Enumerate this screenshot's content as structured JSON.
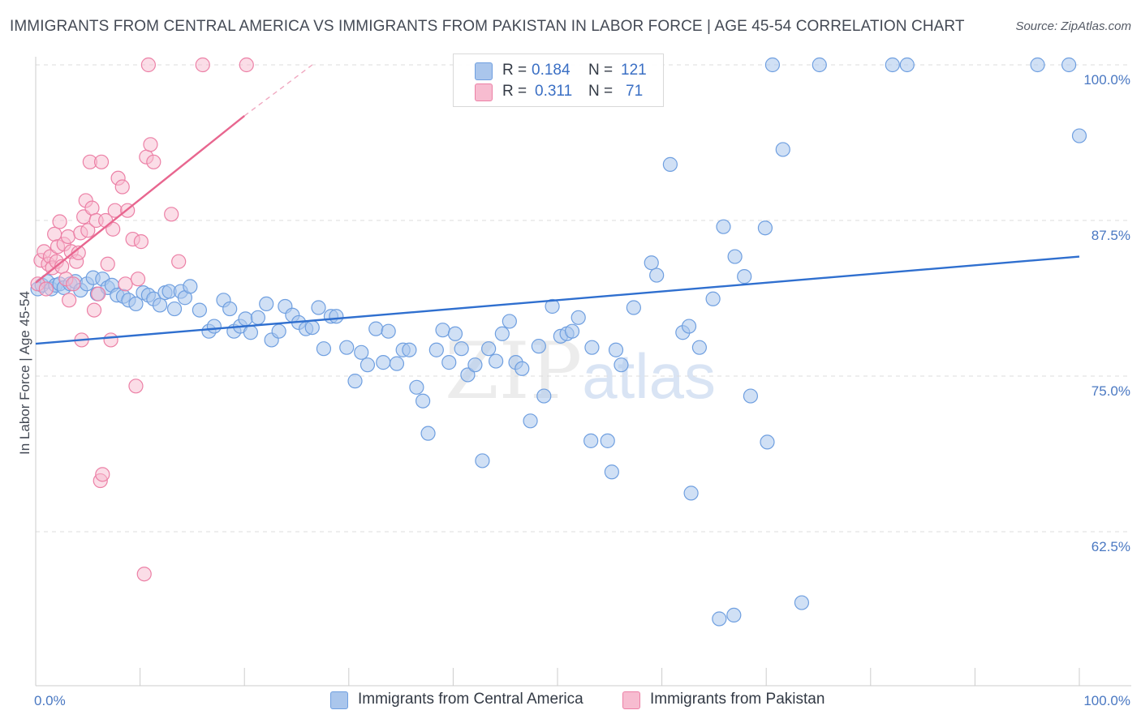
{
  "title": "IMMIGRANTS FROM CENTRAL AMERICA VS IMMIGRANTS FROM PAKISTAN IN LABOR FORCE | AGE 45-54 CORRELATION CHART",
  "source": "Source: ZipAtlas.com",
  "watermark": {
    "zip": "ZIP",
    "atlas": "atlas"
  },
  "legend_top": [
    {
      "r_label": "R =",
      "r_value": "0.184",
      "n_label": "N =",
      "n_value": "121"
    },
    {
      "r_label": "R =",
      "r_value": "0.311",
      "n_label": "N =",
      "n_value": "71"
    }
  ],
  "legend_bottom": [
    {
      "label": "Immigrants from Central America"
    },
    {
      "label": "Immigrants from Pakistan"
    }
  ],
  "colors": {
    "blue_fill": "#aac6ec",
    "blue_stroke": "#6f9fe0",
    "blue_line": "#2f6fcf",
    "pink_fill": "#f7bcd0",
    "pink_stroke": "#ec80a6",
    "pink_line": "#e8668f",
    "grid": "#dddddd",
    "axis_text": "#4a78c2"
  },
  "chart_data": {
    "type": "scatter",
    "title": "IMMIGRANTS FROM CENTRAL AMERICA VS IMMIGRANTS FROM PAKISTAN IN LABOR FORCE | AGE 45-54 CORRELATION CHART",
    "xlabel": "",
    "ylabel": "In Labor Force | Age 45-54",
    "xlim": [
      0,
      100
    ],
    "ylim": [
      50,
      100
    ],
    "x_tick_labels": [
      "0.0%",
      "100.0%"
    ],
    "y_ticks": [
      62.5,
      75.0,
      87.5,
      100.0
    ],
    "y_tick_labels": [
      "62.5%",
      "75.0%",
      "87.5%",
      "100.0%"
    ],
    "grid": "horizontal dashed",
    "legend_position": "top-center",
    "series": [
      {
        "name": "Immigrants from Central America",
        "r": 0.184,
        "n": 121,
        "trend": {
          "x": [
            0,
            100
          ],
          "y": [
            77.6,
            84.6
          ]
        },
        "points": [
          [
            0.2,
            82.0
          ],
          [
            0.6,
            82.3
          ],
          [
            1.1,
            82.6
          ],
          [
            1.5,
            82.0
          ],
          [
            1.9,
            82.3
          ],
          [
            2.3,
            82.4
          ],
          [
            2.7,
            82.1
          ],
          [
            3.3,
            82.4
          ],
          [
            3.8,
            82.6
          ],
          [
            4.3,
            81.9
          ],
          [
            4.9,
            82.4
          ],
          [
            5.5,
            82.9
          ],
          [
            5.9,
            81.6
          ],
          [
            6.4,
            82.8
          ],
          [
            6.9,
            82.1
          ],
          [
            7.3,
            82.3
          ],
          [
            7.8,
            81.5
          ],
          [
            8.4,
            81.4
          ],
          [
            8.9,
            81.1
          ],
          [
            9.6,
            80.8
          ],
          [
            10.3,
            81.7
          ],
          [
            10.8,
            81.5
          ],
          [
            11.3,
            81.2
          ],
          [
            11.9,
            80.7
          ],
          [
            12.4,
            81.7
          ],
          [
            12.8,
            81.8
          ],
          [
            13.3,
            80.4
          ],
          [
            13.9,
            81.8
          ],
          [
            14.3,
            81.3
          ],
          [
            14.8,
            82.2
          ],
          [
            15.7,
            80.3
          ],
          [
            16.6,
            78.6
          ],
          [
            17.1,
            79.0
          ],
          [
            18.0,
            81.1
          ],
          [
            18.6,
            80.4
          ],
          [
            19.0,
            78.6
          ],
          [
            19.6,
            79.0
          ],
          [
            20.1,
            79.6
          ],
          [
            20.6,
            78.5
          ],
          [
            21.3,
            79.7
          ],
          [
            22.1,
            80.8
          ],
          [
            22.6,
            77.9
          ],
          [
            23.3,
            78.6
          ],
          [
            23.9,
            80.6
          ],
          [
            24.6,
            79.9
          ],
          [
            25.2,
            79.3
          ],
          [
            25.9,
            78.8
          ],
          [
            26.5,
            78.9
          ],
          [
            27.1,
            80.5
          ],
          [
            27.6,
            77.2
          ],
          [
            28.3,
            79.8
          ],
          [
            28.8,
            79.8
          ],
          [
            29.8,
            77.3
          ],
          [
            30.6,
            74.6
          ],
          [
            31.2,
            76.9
          ],
          [
            31.8,
            75.9
          ],
          [
            32.6,
            78.8
          ],
          [
            33.3,
            76.1
          ],
          [
            33.8,
            78.6
          ],
          [
            34.6,
            76.0
          ],
          [
            35.2,
            77.1
          ],
          [
            35.8,
            77.1
          ],
          [
            36.5,
            74.1
          ],
          [
            37.1,
            73.0
          ],
          [
            37.6,
            70.4
          ],
          [
            38.4,
            77.1
          ],
          [
            39.0,
            78.7
          ],
          [
            39.6,
            76.1
          ],
          [
            40.2,
            78.4
          ],
          [
            40.8,
            77.2
          ],
          [
            41.4,
            75.1
          ],
          [
            42.1,
            75.9
          ],
          [
            42.8,
            68.2
          ],
          [
            43.4,
            77.2
          ],
          [
            44.1,
            76.2
          ],
          [
            44.7,
            78.4
          ],
          [
            45.4,
            79.4
          ],
          [
            46.0,
            76.1
          ],
          [
            46.6,
            75.6
          ],
          [
            47.4,
            71.4
          ],
          [
            48.2,
            77.4
          ],
          [
            48.7,
            73.4
          ],
          [
            49.5,
            80.6
          ],
          [
            50.3,
            78.2
          ],
          [
            50.9,
            78.4
          ],
          [
            51.4,
            78.6
          ],
          [
            52.0,
            79.7
          ],
          [
            53.2,
            69.8
          ],
          [
            53.3,
            77.3
          ],
          [
            54.8,
            69.8
          ],
          [
            55.2,
            67.3
          ],
          [
            55.6,
            77.1
          ],
          [
            56.1,
            75.9
          ],
          [
            57.3,
            80.5
          ],
          [
            59.0,
            84.1
          ],
          [
            59.5,
            83.1
          ],
          [
            60.8,
            92.0
          ],
          [
            62.0,
            78.5
          ],
          [
            62.6,
            79.0
          ],
          [
            62.8,
            65.6
          ],
          [
            63.6,
            77.3
          ],
          [
            64.9,
            81.2
          ],
          [
            65.5,
            55.5
          ],
          [
            65.9,
            87.0
          ],
          [
            66.9,
            55.8
          ],
          [
            67.0,
            84.6
          ],
          [
            67.9,
            83.0
          ],
          [
            68.5,
            73.4
          ],
          [
            69.9,
            86.9
          ],
          [
            70.1,
            69.7
          ],
          [
            70.6,
            100.0
          ],
          [
            71.6,
            93.2
          ],
          [
            73.4,
            56.8
          ],
          [
            75.1,
            100.0
          ],
          [
            82.1,
            100.0
          ],
          [
            83.5,
            100.0
          ],
          [
            96.0,
            100.0
          ],
          [
            99.0,
            100.0
          ],
          [
            100.0,
            94.3
          ]
        ]
      },
      {
        "name": "Immigrants from Pakistan",
        "r": 0.311,
        "n": 71,
        "trend": {
          "x": [
            0,
            20
          ],
          "y": [
            82.5,
            95.9
          ]
        },
        "trend_dashed": {
          "x": [
            20,
            26.5
          ],
          "y": [
            95.9,
            100.0
          ]
        },
        "points": [
          [
            0.2,
            82.4
          ],
          [
            0.5,
            84.3
          ],
          [
            0.8,
            85.0
          ],
          [
            1.0,
            82.0
          ],
          [
            1.2,
            84.0
          ],
          [
            1.4,
            84.6
          ],
          [
            1.6,
            83.7
          ],
          [
            1.8,
            86.4
          ],
          [
            2.0,
            84.2
          ],
          [
            2.1,
            85.4
          ],
          [
            2.3,
            87.4
          ],
          [
            2.5,
            83.8
          ],
          [
            2.7,
            85.6
          ],
          [
            2.9,
            82.8
          ],
          [
            3.1,
            86.2
          ],
          [
            3.2,
            81.1
          ],
          [
            3.4,
            85.0
          ],
          [
            3.6,
            82.4
          ],
          [
            3.9,
            84.2
          ],
          [
            4.1,
            84.9
          ],
          [
            4.3,
            86.5
          ],
          [
            4.4,
            77.9
          ],
          [
            4.6,
            87.8
          ],
          [
            4.8,
            89.1
          ],
          [
            5.0,
            86.7
          ],
          [
            5.2,
            92.2
          ],
          [
            5.4,
            88.5
          ],
          [
            5.6,
            80.3
          ],
          [
            5.8,
            87.5
          ],
          [
            6.0,
            81.6
          ],
          [
            6.3,
            92.2
          ],
          [
            6.2,
            66.6
          ],
          [
            6.4,
            67.1
          ],
          [
            6.7,
            87.5
          ],
          [
            6.9,
            84.0
          ],
          [
            7.2,
            77.9
          ],
          [
            7.4,
            86.8
          ],
          [
            7.6,
            88.3
          ],
          [
            7.9,
            90.9
          ],
          [
            8.3,
            90.2
          ],
          [
            8.6,
            82.4
          ],
          [
            8.8,
            88.3
          ],
          [
            9.3,
            86.0
          ],
          [
            9.6,
            74.2
          ],
          [
            9.8,
            82.8
          ],
          [
            10.1,
            85.8
          ],
          [
            10.4,
            59.1
          ],
          [
            10.6,
            92.6
          ],
          [
            11.0,
            93.6
          ],
          [
            11.3,
            92.2
          ],
          [
            13.0,
            88.0
          ],
          [
            13.7,
            84.2
          ],
          [
            10.8,
            100.0
          ],
          [
            16.0,
            100.0
          ],
          [
            20.2,
            100.0
          ]
        ]
      }
    ]
  }
}
